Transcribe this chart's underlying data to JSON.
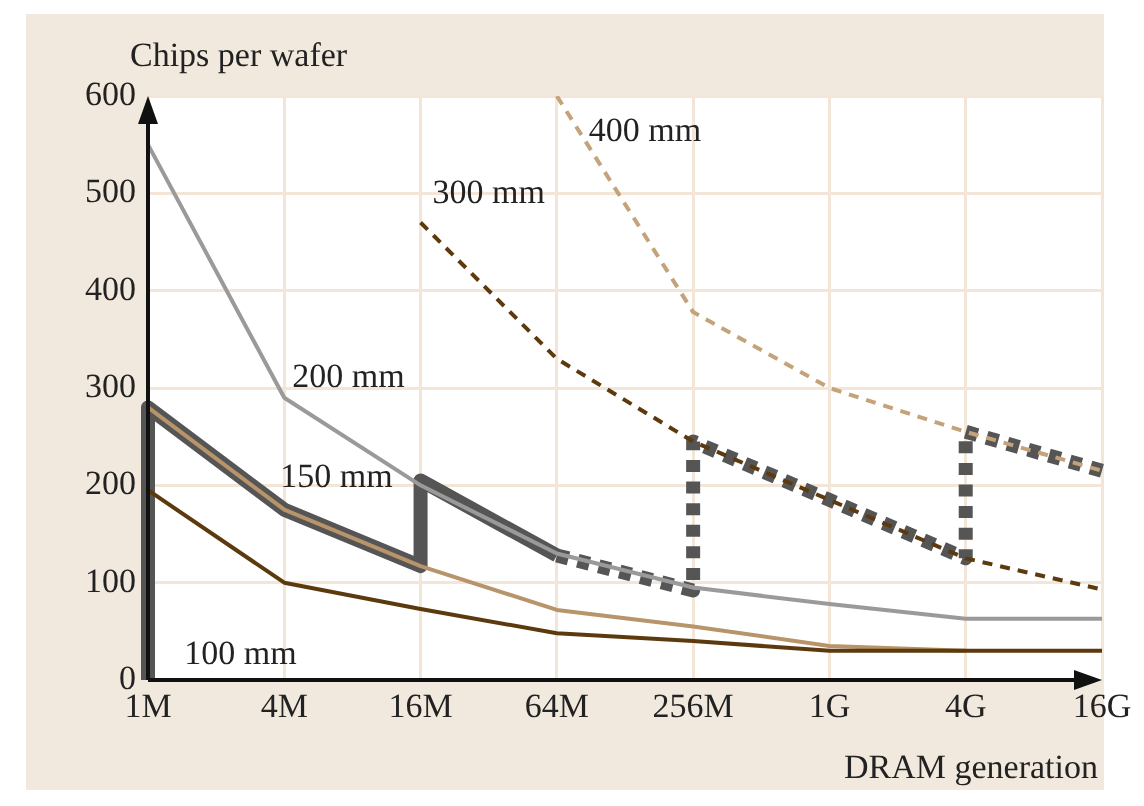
{
  "chart_data": {
    "type": "line",
    "xlabel": "DRAM generation",
    "ylabel": "Chips per wafer",
    "categories": [
      "1M",
      "4M",
      "16M",
      "64M",
      "256M",
      "1G",
      "4G",
      "16G"
    ],
    "ylim": [
      0,
      600
    ],
    "yticks": [
      0,
      100,
      200,
      300,
      400,
      500,
      600
    ],
    "grid": true,
    "legend": false,
    "marker": "none",
    "series": [
      {
        "name": "100 mm",
        "color": "#5c3a0e",
        "values": [
          195,
          100,
          73,
          48,
          40,
          30,
          30,
          30
        ]
      },
      {
        "name": "150 mm",
        "color": "#b8946a",
        "values": [
          280,
          175,
          117,
          72,
          55,
          35,
          30,
          null
        ]
      },
      {
        "name": "200 mm",
        "color": "#9a9a9a",
        "values": [
          550,
          290,
          200,
          130,
          95,
          78,
          63,
          63
        ]
      },
      {
        "name": "300 mm",
        "color": "#5c3a0e",
        "line_style": "dashed",
        "values": [
          null,
          null,
          470,
          330,
          245,
          185,
          125,
          93
        ]
      },
      {
        "name": "400 mm",
        "color": "#c4a27a",
        "line_style": "dashed",
        "values": [
          null,
          null,
          null,
          600,
          378,
          300,
          255,
          215
        ]
      },
      {
        "color": "#555555",
        "line_style": "solid",
        "x": [
          "1M",
          "1M",
          "4M",
          "16M",
          "16M",
          "64M"
        ],
        "values": [
          0,
          280,
          175,
          117,
          205,
          128
        ]
      },
      {
        "color": "#555555",
        "line_style": "dashed",
        "x": [
          "64M",
          "256M",
          "256M",
          "1G",
          "4G",
          "4G",
          "16G"
        ],
        "values": [
          128,
          92,
          245,
          185,
          125,
          255,
          215
        ]
      }
    ]
  }
}
